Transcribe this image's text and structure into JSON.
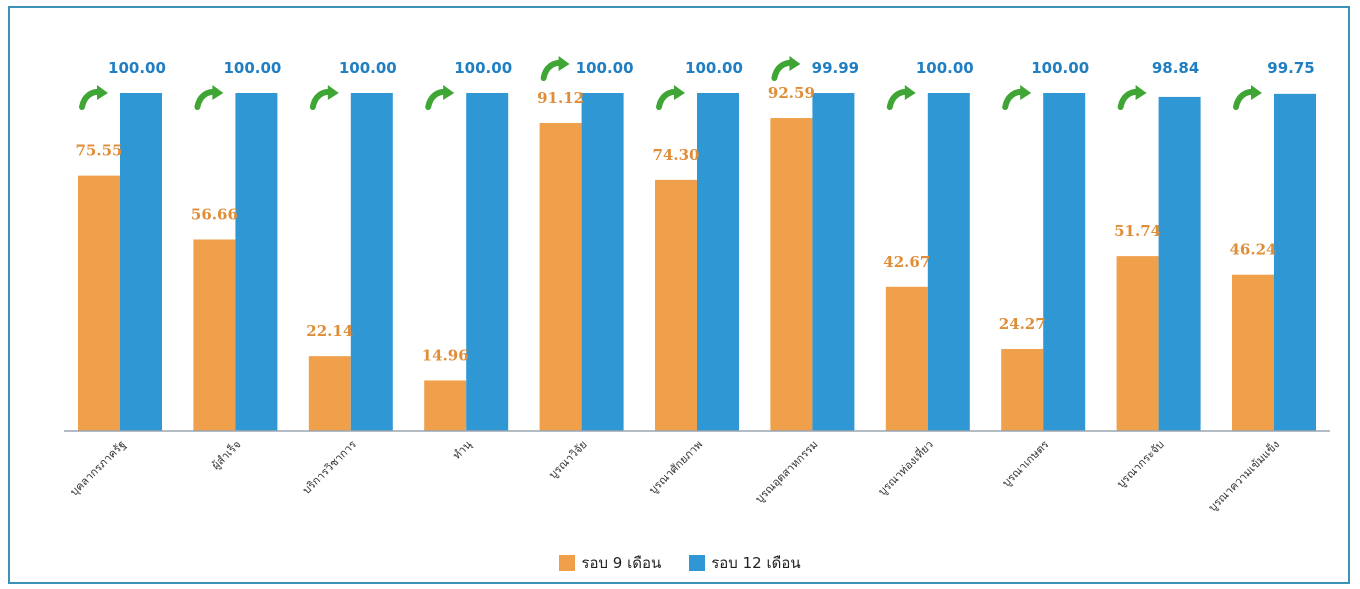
{
  "chart_data": {
    "type": "bar",
    "categories": [
      "บุคลากรภาครัฐ",
      "ผู้สำเร็จ",
      "บริการวิชาการ",
      "ทำนุ",
      "บูรณาวิจัย",
      "บูรณาศักยภาพ",
      "บูรณอุตสาหกรรม",
      "บูรณาท่องเที่ยว",
      "บูรณาเกษตร",
      "บูรณากระจับ",
      "บูรณาความเข้มแข็ง"
    ],
    "series": [
      {
        "name": "รอบ 9 เดือน",
        "color": "#f0a04b",
        "values": [
          75.55,
          56.66,
          22.14,
          14.96,
          91.12,
          74.3,
          92.59,
          42.67,
          24.27,
          51.74,
          46.24
        ],
        "labels": [
          "75.55",
          "56.66",
          "22.14",
          "14.96",
          "91.12",
          "74.30",
          "92.59",
          "42.67",
          "24.27",
          "51.74",
          "46.24"
        ]
      },
      {
        "name": "รอบ 12 เดือน",
        "color": "#2e97d4",
        "values": [
          100.0,
          100.0,
          100.0,
          100.0,
          100.0,
          100.0,
          99.99,
          100.0,
          100.0,
          98.84,
          99.75
        ],
        "labels": [
          "100.00",
          "100.00",
          "100.00",
          "100.00",
          "100.00",
          "100.00",
          "99.99",
          "100.00",
          "100.00",
          "98.84",
          "99.75"
        ]
      }
    ],
    "ylim": [
      0,
      100
    ],
    "arrow_icon": "green-curved-arrow-icon",
    "arrow_color": "#3fa535",
    "legend_position": "bottom-center"
  },
  "legend": {
    "items": [
      {
        "label": "รอบ 9 เดือน",
        "color": "#f0a04b"
      },
      {
        "label": "รอบ 12 เดือน",
        "color": "#2e97d4"
      }
    ]
  }
}
